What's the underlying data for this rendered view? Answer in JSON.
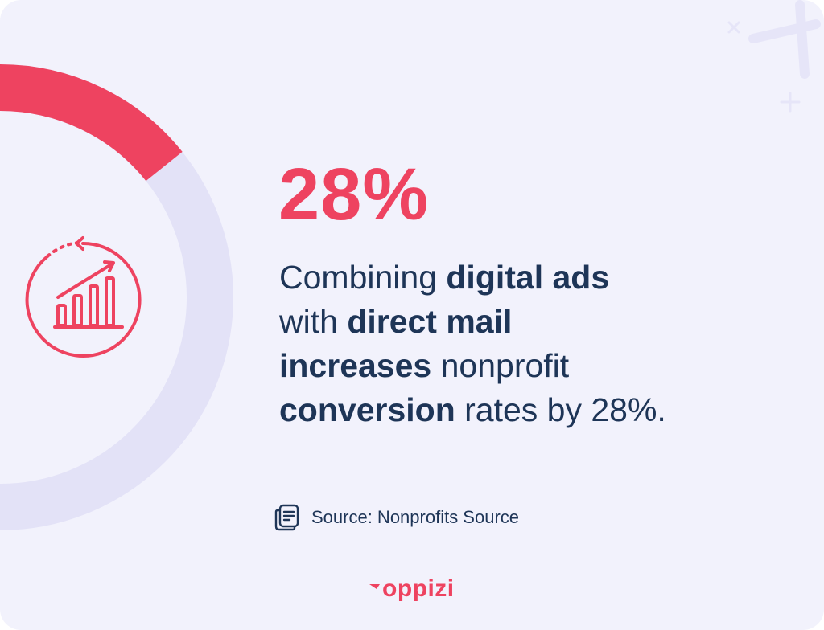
{
  "stat": {
    "value": "28%"
  },
  "statement": {
    "line1": {
      "plain1": "Combining ",
      "bold1": "digital ads"
    },
    "line2": {
      "plain1": "with ",
      "bold1": "direct mail"
    },
    "line3": {
      "bold1": "increases",
      "plain1": " nonprofit"
    },
    "line4": {
      "bold1": "conversion",
      "plain1": " rates by 28%."
    }
  },
  "source": {
    "text": "Source: Nonprofits Source",
    "icon": "document-icon"
  },
  "logo": {
    "text": "oppizi"
  },
  "ring": {
    "fraction_highlighted": 0.28
  },
  "colors": {
    "accent": "#ee4360",
    "text": "#1e3557",
    "background": "#f2f2fc",
    "ring_track": "#e3e2f7"
  }
}
